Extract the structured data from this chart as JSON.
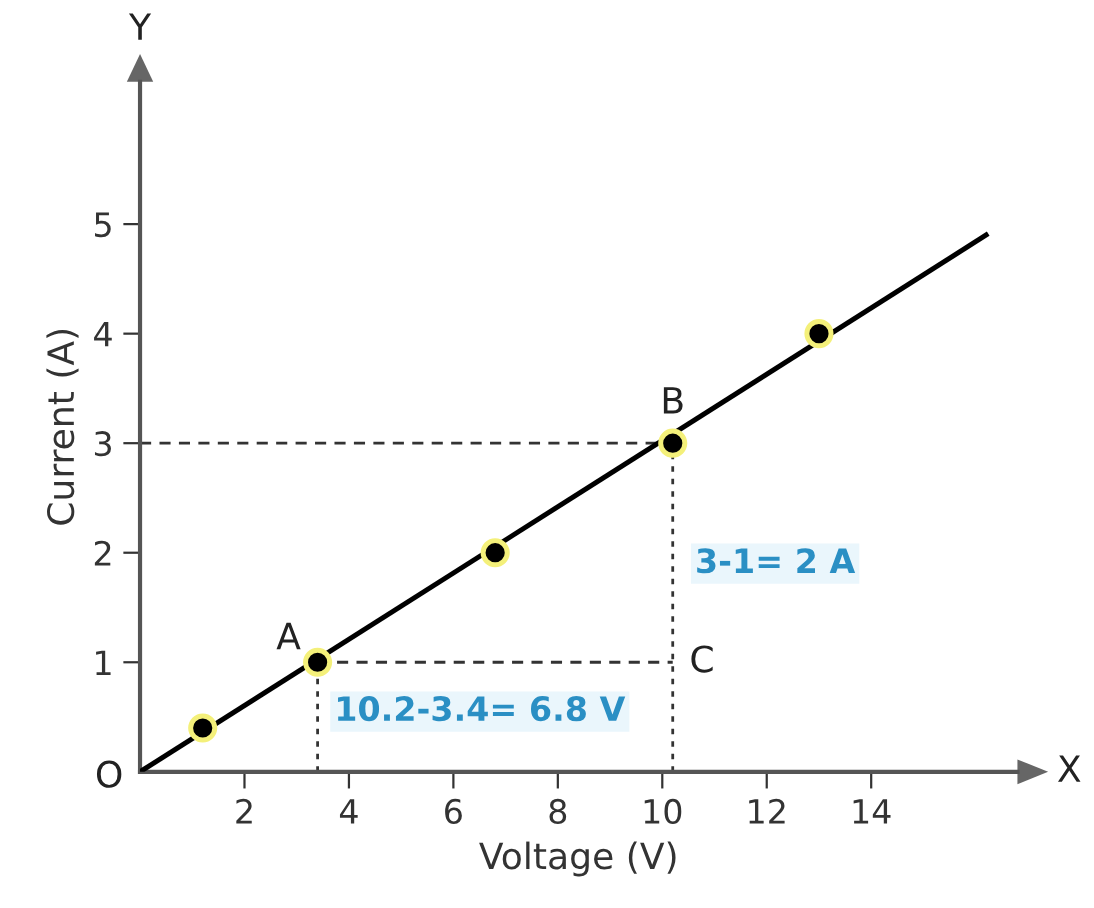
{
  "chart_data": {
    "type": "line",
    "xlabel": "Voltage (V)",
    "ylabel": "Current (A)",
    "xlim": [
      0,
      16.8
    ],
    "ylim": [
      0,
      6.3
    ],
    "xticks": [
      2,
      4,
      6,
      8,
      10,
      12,
      14
    ],
    "yticks": [
      1,
      2,
      3,
      4,
      5
    ],
    "grid": false,
    "legend": false,
    "series": [
      {
        "type": "line",
        "color": "#000000",
        "x": [
          0,
          16.2
        ],
        "values": [
          0,
          4.9
        ],
        "marker": "none",
        "line_style": "solid"
      },
      {
        "type": "scatter",
        "color": "#000000",
        "x": [
          1.2,
          3.4,
          6.8,
          10.2,
          13.0
        ],
        "values": [
          0.4,
          1.0,
          2.0,
          3.0,
          4.0
        ],
        "marker": "circle"
      },
      {
        "type": "line",
        "color": "#333333",
        "x": [
          0,
          10.2
        ],
        "values": [
          3,
          3
        ],
        "line_style": "dashed"
      },
      {
        "type": "line",
        "color": "#333333",
        "x": [
          3.4,
          10.2
        ],
        "values": [
          1,
          1
        ],
        "line_style": "dashed"
      },
      {
        "type": "line",
        "color": "#333333",
        "x": [
          3.4,
          3.4
        ],
        "values": [
          0,
          1
        ],
        "line_style": "dotted"
      },
      {
        "type": "line",
        "color": "#333333",
        "x": [
          10.2,
          10.2
        ],
        "values": [
          0,
          3
        ],
        "line_style": "dotted"
      }
    ],
    "annotations": [
      {
        "text": "A",
        "x": 3.4,
        "y": 1.0
      },
      {
        "text": "B",
        "x": 10.2,
        "y": 3.0
      },
      {
        "text": "C",
        "x": 10.2,
        "y": 1.0
      },
      {
        "text": "10.2-3.4= 6.8 V",
        "x": 3.4,
        "y": 0.55
      },
      {
        "text": "3-1= 2 A",
        "x": 10.2,
        "y": 1.9
      },
      {
        "text": "O",
        "x": 0,
        "y": 0
      },
      "X",
      "Y"
    ]
  }
}
